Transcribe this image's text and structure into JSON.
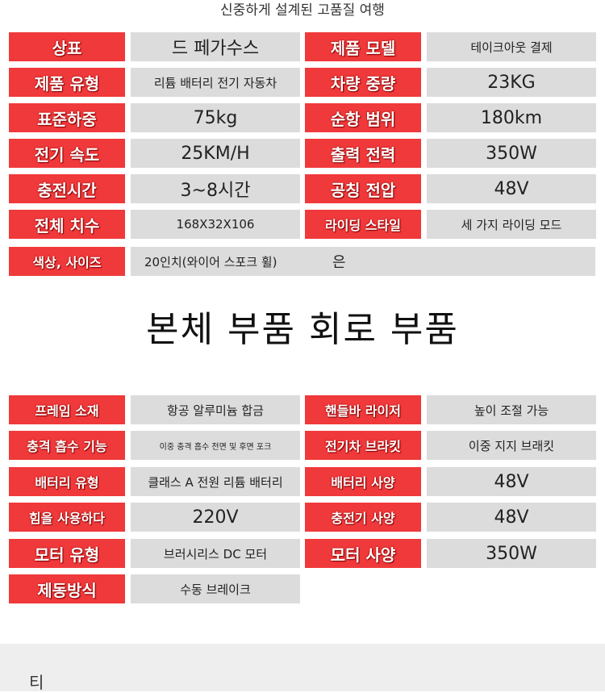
{
  "header": {
    "subtitle": "신중하게 설계된 고품질 여행"
  },
  "table1": {
    "rows": [
      [
        "상표",
        "드 페가수스",
        "제품 모델",
        "테이크아웃 결제"
      ],
      [
        "제품 유형",
        "리튬 배터리 전기 자동차",
        "차량 중량",
        "23KG"
      ],
      [
        "표준하중",
        "75kg",
        "순항 범위",
        "180km"
      ],
      [
        "전기 속도",
        "25KM/H",
        "출력 전력",
        "350W"
      ],
      [
        "충전시간",
        "3~8시간",
        "공칭 전압",
        "48V"
      ],
      [
        "전체 치수",
        "168X32X106",
        "라이딩 스타일",
        "세 가지 라이딩 모드"
      ],
      [
        "색상, 사이즈",
        "20인치(와이어 스포크 휠)",
        "은"
      ]
    ]
  },
  "heading": "본체 부품 회로 부품",
  "table2": {
    "rows": [
      [
        "프레임 소재",
        "항공 알루미늄 합금",
        "핸들바 라이저",
        "높이 조절 가능"
      ],
      [
        "충격 흡수 기능",
        "이중 충격 흡수 전면 및 후면 포크",
        "전기차 브라킷",
        "이중 지지 브래킷"
      ],
      [
        "배터리 유형",
        "클래스 A 전원 리튬 배터리",
        "배터리 사양",
        "48V"
      ],
      [
        "힘을 사용하다",
        "220V",
        "충전기 사양",
        "48V"
      ],
      [
        "모터 유형",
        "브러시리스 DC 모터",
        "모터 사양",
        "350W"
      ],
      [
        "제동방식",
        "수동 브레이크"
      ]
    ]
  },
  "footer": {
    "text": "티"
  }
}
